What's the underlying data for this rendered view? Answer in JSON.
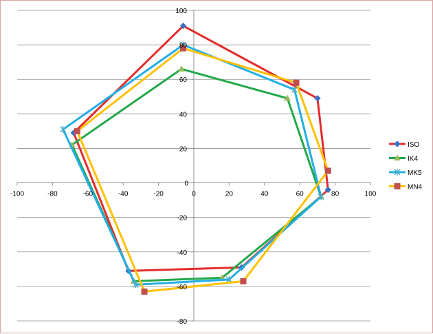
{
  "chart_data": {
    "type": "scatter",
    "title": "",
    "xlabel": "",
    "ylabel": "",
    "xlim": [
      -100,
      100
    ],
    "ylim": [
      -80,
      100
    ],
    "x_ticks": [
      -100,
      -80,
      -60,
      -40,
      -20,
      0,
      20,
      40,
      60,
      80,
      100
    ],
    "y_ticks": [
      -80,
      -60,
      -40,
      -20,
      0,
      20,
      40,
      60,
      80,
      100
    ],
    "grid": "horizontal major gridlines",
    "legend_position": "right",
    "series": [
      {
        "name": "ISO",
        "color": "#e32b2b",
        "marker": "diamond",
        "points": [
          [
            -6,
            91
          ],
          [
            70,
            49
          ],
          [
            76,
            -4
          ],
          [
            27,
            -49
          ],
          [
            -37,
            -51
          ],
          [
            -68,
            29
          ],
          [
            -6,
            91
          ]
        ]
      },
      {
        "name": "IK4",
        "color": "#22a84a",
        "marker": "triangle",
        "points": [
          [
            -7,
            66
          ],
          [
            53,
            49
          ],
          [
            72,
            -8
          ],
          [
            16,
            -55
          ],
          [
            -34,
            -57
          ],
          [
            -69,
            22
          ],
          [
            -7,
            66
          ]
        ]
      },
      {
        "name": "MK5",
        "color": "#22aee6",
        "marker": "x",
        "points": [
          [
            -6,
            80
          ],
          [
            57,
            54
          ],
          [
            72,
            -8
          ],
          [
            20,
            -56
          ],
          [
            -33,
            -59
          ],
          [
            -74,
            31
          ],
          [
            -6,
            80
          ]
        ]
      },
      {
        "name": "MN4",
        "color": "#ffc000",
        "marker": "square",
        "points": [
          [
            -6,
            78
          ],
          [
            58,
            58
          ],
          [
            76,
            7
          ],
          [
            28,
            -57
          ],
          [
            -28,
            -63
          ],
          [
            -66,
            30
          ],
          [
            -6,
            78
          ]
        ]
      }
    ]
  }
}
